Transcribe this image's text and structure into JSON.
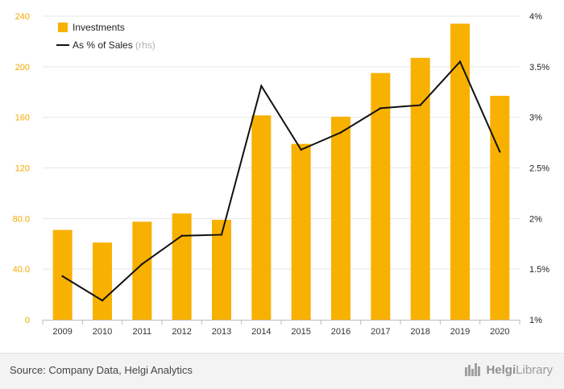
{
  "chart_data": {
    "type": "bar",
    "categories": [
      "2009",
      "2010",
      "2011",
      "2012",
      "2013",
      "2014",
      "2015",
      "2016",
      "2017",
      "2018",
      "2019",
      "2020"
    ],
    "series": [
      {
        "name": "Investments",
        "type": "bar",
        "axis": "left",
        "color": "#f8b100",
        "values": [
          71.0,
          61.0,
          77.5,
          84.0,
          79.0,
          161.5,
          139.0,
          160.5,
          195.0,
          207.0,
          234.0,
          177.0
        ]
      },
      {
        "name": "As % of Sales",
        "name_suffix": "(rhs)",
        "type": "line",
        "axis": "right",
        "color": "#111111",
        "values": [
          1.43,
          1.19,
          1.55,
          1.83,
          1.84,
          3.31,
          2.68,
          2.85,
          3.09,
          3.12,
          3.55,
          2.66
        ]
      }
    ],
    "y_left": {
      "ylim": [
        0,
        240
      ],
      "ticks": [
        0,
        40,
        80,
        120,
        160,
        200,
        240
      ],
      "tick_labels": [
        "0",
        "40.0",
        "80.0",
        "120",
        "160",
        "200",
        "240"
      ],
      "color": "#f5a800"
    },
    "y_right": {
      "ylim": [
        1,
        4
      ],
      "ticks": [
        1,
        1.5,
        2,
        2.5,
        3,
        3.5,
        4
      ],
      "tick_labels": [
        "1%",
        "1.5%",
        "2%",
        "2.5%",
        "3%",
        "3.5%",
        "4%"
      ]
    },
    "grid": true,
    "legend_position": "top-left"
  },
  "footer": {
    "source": "Source: Company Data, Helgi Analytics",
    "brand_name": "Helgi",
    "brand_suffix": "Library"
  }
}
